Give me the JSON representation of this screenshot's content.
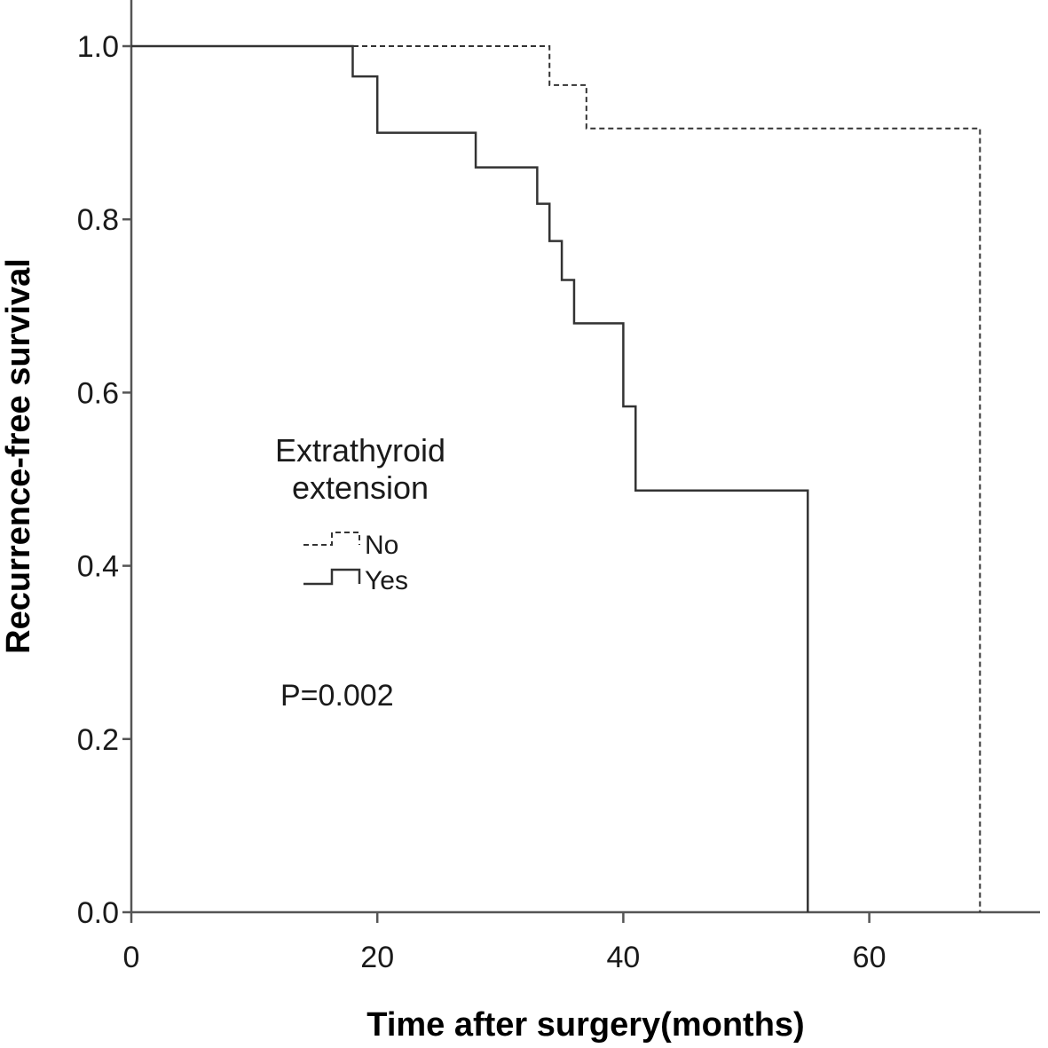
{
  "chart_data": {
    "type": "line",
    "xlabel": "Time after surgery(months)",
    "ylabel": "Recurrence-free survival",
    "xlim": [
      0,
      74
    ],
    "ylim": [
      0,
      1.0
    ],
    "x_ticks": [
      0,
      20,
      40,
      60
    ],
    "y_ticks": [
      0.0,
      0.2,
      0.4,
      0.6,
      0.8,
      1.0
    ],
    "x_tick_labels": [
      "0",
      "20",
      "40",
      "60"
    ],
    "y_tick_labels": [
      "0.0",
      "0.2",
      "0.4",
      "0.6",
      "0.8",
      "1.0"
    ],
    "legend": {
      "title_line1": "Extrathyroid",
      "title_line2": "extension",
      "items": [
        "No",
        "Yes"
      ],
      "placement": "center-left"
    },
    "annotation": "P=0.002",
    "grid": false,
    "series": [
      {
        "name": "No",
        "style": "dashed",
        "step": true,
        "x": [
          0,
          34,
          37,
          69
        ],
        "y": [
          1.0,
          0.955,
          0.905,
          0.0
        ]
      },
      {
        "name": "Yes",
        "style": "solid",
        "step": true,
        "x": [
          0,
          18,
          20,
          28,
          33,
          34,
          35,
          36,
          40,
          41,
          55
        ],
        "y": [
          1.0,
          0.965,
          0.9,
          0.86,
          0.818,
          0.775,
          0.73,
          0.68,
          0.584,
          0.487,
          0.0
        ]
      }
    ]
  }
}
